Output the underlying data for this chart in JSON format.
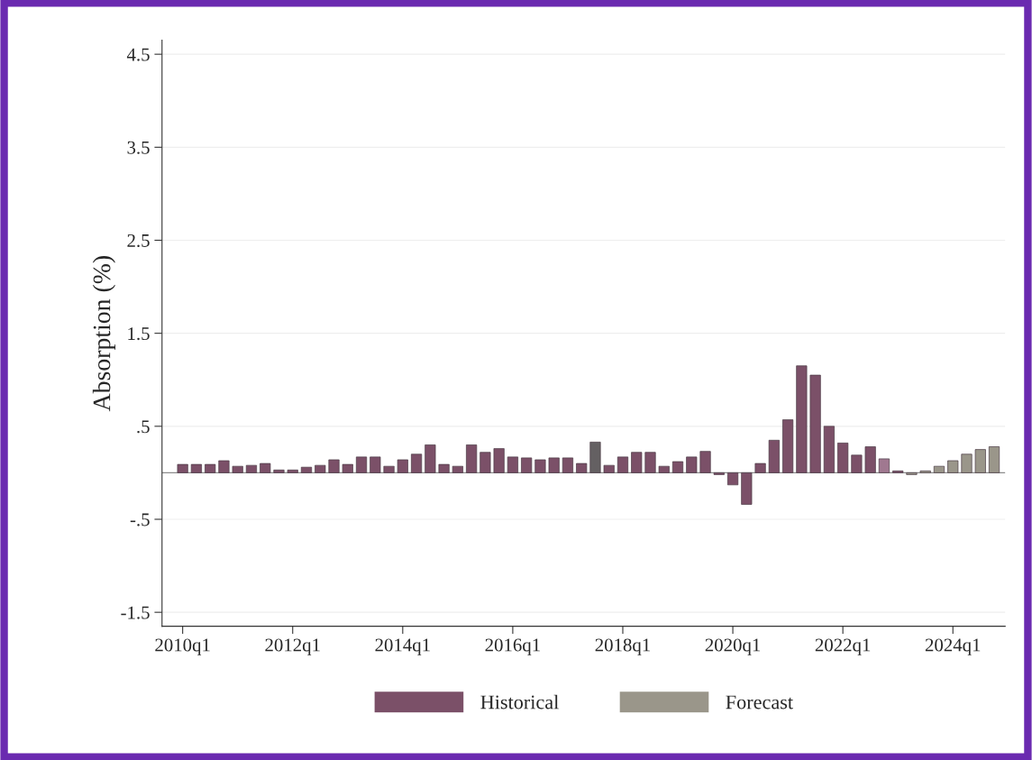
{
  "chart_data": {
    "type": "bar",
    "ylabel": "Absorption (%)",
    "categories": [
      "2010q1",
      null,
      null,
      null,
      null,
      null,
      null,
      null,
      "2012q1",
      null,
      null,
      null,
      null,
      null,
      null,
      null,
      "2014q1",
      null,
      null,
      null,
      null,
      null,
      null,
      null,
      "2016q1",
      null,
      null,
      null,
      null,
      null,
      null,
      null,
      "2018q1",
      null,
      null,
      null,
      null,
      null,
      null,
      null,
      "2020q1",
      null,
      null,
      null,
      null,
      null,
      null,
      null,
      "2022q1",
      null,
      null,
      null,
      null,
      null,
      null,
      null,
      "2024q1",
      null,
      null,
      null
    ],
    "series": [
      {
        "name": "Historical",
        "color": "#7b5068",
        "values": [
          0.09,
          0.09,
          0.09,
          0.13,
          0.07,
          0.08,
          0.1,
          0.03,
          0.03,
          0.06,
          0.08,
          0.14,
          0.09,
          0.17,
          0.17,
          0.07,
          0.14,
          0.2,
          0.3,
          0.09,
          0.07,
          0.3,
          0.22,
          0.26,
          0.17,
          0.16,
          0.14,
          0.16,
          0.16,
          0.1,
          0.33,
          0.08,
          0.17,
          0.22,
          0.22,
          0.07,
          0.12,
          0.17,
          0.23,
          -0.02,
          -0.13,
          -0.34,
          0.1,
          0.35,
          0.57,
          1.15,
          1.05,
          0.5,
          0.32,
          0.19,
          0.28,
          0.15,
          0.02,
          null,
          null,
          null,
          null,
          null,
          null,
          null
        ],
        "colors": [
          "#7b5068",
          "#7b5068",
          "#7b5068",
          "#7b5068",
          "#7b5068",
          "#7b5068",
          "#7b5068",
          "#7b5068",
          "#7b5068",
          "#7b5068",
          "#7b5068",
          "#7b5068",
          "#7b5068",
          "#7b5068",
          "#7b5068",
          "#7b5068",
          "#7b5068",
          "#7b5068",
          "#7b5068",
          "#7b5068",
          "#7b5068",
          "#7b5068",
          "#7b5068",
          "#7b5068",
          "#7b5068",
          "#7b5068",
          "#7b5068",
          "#7b5068",
          "#7b5068",
          "#7b5068",
          "#646062",
          "#7b5068",
          "#7b5068",
          "#7b5068",
          "#7b5068",
          "#7b5068",
          "#7b5068",
          "#7b5068",
          "#7b5068",
          "#7b5068",
          "#7b5068",
          "#7b5068",
          "#7b5068",
          "#7b5068",
          "#7b5068",
          "#7b5068",
          "#7b5068",
          "#7b5068",
          "#7b5068",
          "#7b5068",
          "#7b5068",
          "#a07890",
          "#7b5068",
          null,
          null,
          null,
          null,
          null,
          null,
          null
        ]
      },
      {
        "name": "Forecast",
        "color": "#9a968a",
        "values": [
          null,
          null,
          null,
          null,
          null,
          null,
          null,
          null,
          null,
          null,
          null,
          null,
          null,
          null,
          null,
          null,
          null,
          null,
          null,
          null,
          null,
          null,
          null,
          null,
          null,
          null,
          null,
          null,
          null,
          null,
          null,
          null,
          null,
          null,
          null,
          null,
          null,
          null,
          null,
          null,
          null,
          null,
          null,
          null,
          null,
          null,
          null,
          null,
          null,
          null,
          null,
          null,
          null,
          -0.02,
          0.02,
          0.07,
          0.13,
          0.2,
          0.25,
          0.28
        ]
      }
    ],
    "ylim": [
      -1.65,
      4.65
    ],
    "yticks": [
      4.5,
      3.5,
      2.5,
      1.5,
      {
        "value": 0.5,
        "label": ".5"
      },
      {
        "value": -0.5,
        "label": "-.5"
      },
      -1.5
    ],
    "ref_lines": [
      {
        "axis": "y",
        "value": 0,
        "color": "#8c8c8c"
      }
    ],
    "grid": "y",
    "legend": "bottom"
  }
}
